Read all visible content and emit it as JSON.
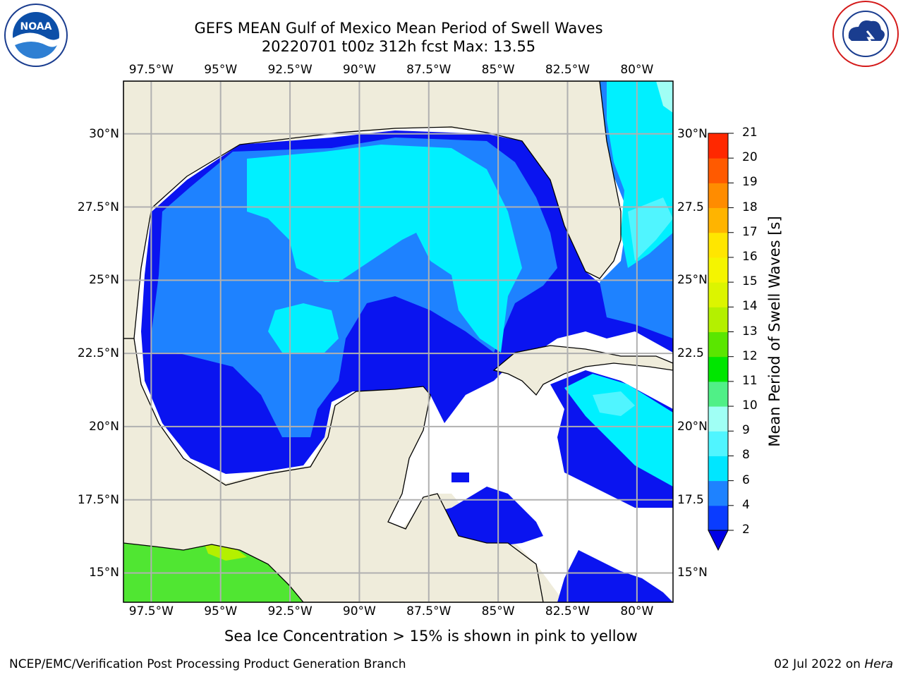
{
  "header": {
    "title": "GEFS MEAN Gulf of Mexico Mean Period of Swell Waves",
    "subtitle": "20220701 t00z 312h fcst   Max: 13.55"
  },
  "logos": {
    "left": "noaa-logo",
    "right": "national-weather-service-logo"
  },
  "map": {
    "extent": {
      "lon_min": -98.5,
      "lon_max": -78.7,
      "lat_min": 14.0,
      "lat_max": 31.8
    },
    "lon_labels": [
      "97.5°W",
      "95°W",
      "92.5°W",
      "90°W",
      "87.5°W",
      "85°W",
      "82.5°W",
      "80°W"
    ],
    "lon_values": [
      -97.5,
      -95,
      -92.5,
      -90,
      -87.5,
      -85,
      -82.5,
      -80
    ],
    "lat_labels": [
      "30°N",
      "27.5°N",
      "25°N",
      "22.5°N",
      "20°N",
      "17.5°N",
      "15°N"
    ],
    "lat_values": [
      30,
      27.5,
      25,
      22.5,
      20,
      17.5,
      15
    ],
    "right_lat_labels": [
      "30°N",
      "27.5",
      "25°N",
      "22.5",
      "20°N",
      "17.5",
      "15°N"
    ],
    "grid": true,
    "land_color": "#efecdb",
    "ocean_nodata_color": "#ffffff"
  },
  "colorbar": {
    "title": "Mean Period of Swell Waves [s]",
    "ticks": [
      "21",
      "20",
      "19",
      "18",
      "17",
      "16",
      "15",
      "14",
      "13",
      "12",
      "11",
      "10",
      "9",
      "8",
      "6",
      "4",
      "2"
    ],
    "levels": [
      2,
      4,
      6,
      8,
      9,
      10,
      11,
      12,
      13,
      14,
      15,
      16,
      17,
      18,
      19,
      20,
      21
    ],
    "colors": [
      "#0a3cff",
      "#1e82ff",
      "#00e6ff",
      "#50f5ff",
      "#a0fff5",
      "#50f087",
      "#00e600",
      "#5ae600",
      "#b4f000",
      "#dcf500",
      "#f5f500",
      "#ffe600",
      "#ffb400",
      "#ff8c00",
      "#ff5a00",
      "#ff2800"
    ],
    "extend_color": "#0000e6"
  },
  "note": "Sea Ice Concentration > 15% is shown in pink to yellow",
  "footer": {
    "left": "NCEP/EMC/Verification Post Processing Product Generation Branch",
    "right_date": "02 Jul 2022 on ",
    "right_host": "Hera"
  }
}
